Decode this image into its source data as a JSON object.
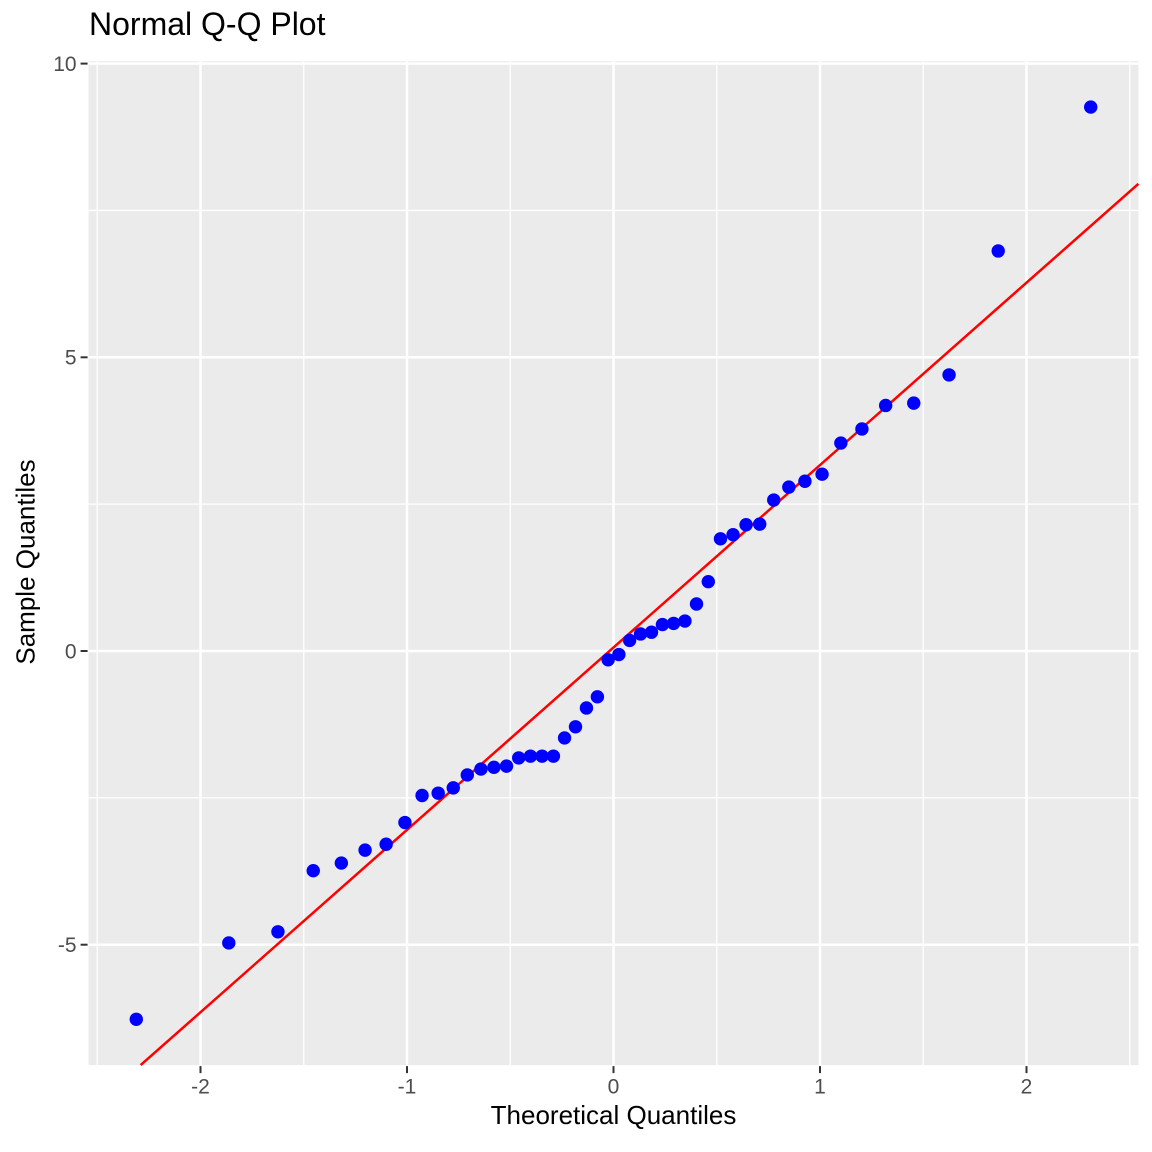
{
  "chart_data": {
    "type": "scatter",
    "title": "Normal Q-Q Plot",
    "xlabel": "Theoretical Quantiles",
    "ylabel": "Sample Quantiles",
    "n_points": 48,
    "x": [
      -2.311,
      -1.863,
      -1.625,
      -1.454,
      -1.318,
      -1.203,
      -1.101,
      -1.01,
      -0.927,
      -0.849,
      -0.776,
      -0.708,
      -0.642,
      -0.579,
      -0.518,
      -0.459,
      -0.402,
      -0.346,
      -0.291,
      -0.237,
      -0.184,
      -0.131,
      -0.078,
      -0.026,
      0.026,
      0.078,
      0.131,
      0.184,
      0.237,
      0.291,
      0.346,
      0.402,
      0.459,
      0.518,
      0.579,
      0.642,
      0.708,
      0.776,
      0.849,
      0.927,
      1.01,
      1.101,
      1.203,
      1.318,
      1.454,
      1.625,
      1.863,
      2.311
    ],
    "y": [
      -6.27,
      -4.97,
      -4.78,
      -3.74,
      -3.61,
      -3.39,
      -3.29,
      -2.92,
      -2.46,
      -2.42,
      -2.33,
      -2.11,
      -2.01,
      -1.98,
      -1.96,
      -1.82,
      -1.79,
      -1.79,
      -1.79,
      -1.48,
      -1.29,
      -0.97,
      -0.78,
      -0.15,
      -0.06,
      0.18,
      0.29,
      0.32,
      0.45,
      0.47,
      0.51,
      0.8,
      1.18,
      1.91,
      1.98,
      2.15,
      2.16,
      2.57,
      2.79,
      2.89,
      3.01,
      3.54,
      3.78,
      4.18,
      4.22,
      4.7,
      6.81,
      9.26
    ],
    "reference_line": {
      "slope": 3.105,
      "intercept": 0.06
    },
    "xlim": [
      -2.542,
      2.542
    ],
    "ylim": [
      -7.05,
      10.04
    ],
    "x_ticks": [
      -2,
      -1,
      0,
      1,
      2
    ],
    "x_tick_labels": [
      "-2",
      "-1",
      "0",
      "1",
      "2"
    ],
    "y_ticks": [
      -5,
      0,
      5,
      10
    ],
    "y_tick_labels": [
      "-5",
      "0",
      "5",
      "10"
    ],
    "x_minor_gridlines": [
      -2.5,
      -1.5,
      -0.5,
      0.5,
      1.5,
      2.5
    ],
    "y_minor_gridlines": [
      -2.5,
      2.5,
      7.5
    ],
    "grid": "on",
    "legend_position": "none",
    "colors": {
      "point": "#0000FF",
      "reference_line": "#FF0000",
      "panel_background": "#EBEBEB",
      "gridline": "#FFFFFF",
      "tick_mark": "#333333",
      "tick_label": "#4D4D4D",
      "title_text": "#000000",
      "page_background": "#FFFFFF"
    }
  }
}
